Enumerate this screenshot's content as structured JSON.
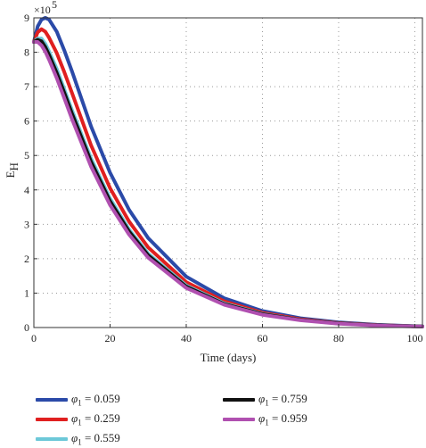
{
  "chart_data": {
    "type": "line",
    "xlabel": "Time (days)",
    "ylabel": "E",
    "ylabel_sub": "H",
    "y_multiplier": "×10",
    "y_multiplier_exp": "5",
    "xlim": [
      0,
      102
    ],
    "ylim": [
      0,
      9
    ],
    "xticks": [
      0,
      20,
      40,
      60,
      80,
      100
    ],
    "yticks": [
      0,
      1,
      2,
      3,
      4,
      5,
      6,
      7,
      8,
      9
    ],
    "grid": "dotted",
    "legend_position": "bottom",
    "series": [
      {
        "name": "= 0.059",
        "symbol": "φ",
        "sub": "1",
        "color": "#2b4aa8",
        "x": [
          0,
          1,
          2,
          3,
          4,
          6,
          8,
          10,
          15,
          20,
          25,
          30,
          40,
          50,
          60,
          70,
          80,
          90,
          100,
          102
        ],
        "y": [
          8.3,
          8.75,
          8.95,
          9.0,
          8.95,
          8.6,
          8.05,
          7.45,
          5.85,
          4.5,
          3.42,
          2.6,
          1.48,
          0.85,
          0.48,
          0.27,
          0.15,
          0.08,
          0.04,
          0.035
        ]
      },
      {
        "name": "= 0.259",
        "symbol": "φ",
        "sub": "1",
        "color": "#e02020",
        "x": [
          0,
          1,
          2,
          3,
          4,
          6,
          8,
          10,
          15,
          20,
          25,
          30,
          40,
          50,
          60,
          70,
          80,
          90,
          100,
          102
        ],
        "y": [
          8.3,
          8.58,
          8.67,
          8.6,
          8.42,
          7.98,
          7.42,
          6.82,
          5.3,
          4.05,
          3.08,
          2.33,
          1.32,
          0.76,
          0.43,
          0.24,
          0.13,
          0.07,
          0.035,
          0.03
        ]
      },
      {
        "name": "= 0.559",
        "symbol": "φ",
        "sub": "1",
        "color": "#6cc8d8",
        "x": [
          0,
          1,
          2,
          3,
          4,
          6,
          8,
          10,
          15,
          20,
          25,
          30,
          40,
          50,
          60,
          70,
          80,
          90,
          100,
          102
        ],
        "y": [
          8.3,
          8.4,
          8.4,
          8.25,
          8.02,
          7.52,
          6.92,
          6.32,
          4.92,
          3.75,
          2.85,
          2.15,
          1.22,
          0.7,
          0.4,
          0.22,
          0.12,
          0.065,
          0.035,
          0.03
        ]
      },
      {
        "name": "= 0.759",
        "symbol": "φ",
        "sub": "1",
        "color": "#111111",
        "x": [
          0,
          1,
          2,
          3,
          4,
          6,
          8,
          10,
          15,
          20,
          25,
          30,
          40,
          50,
          60,
          70,
          80,
          90,
          100,
          102
        ],
        "y": [
          8.3,
          8.36,
          8.32,
          8.15,
          7.92,
          7.4,
          6.82,
          6.22,
          4.82,
          3.67,
          2.79,
          2.1,
          1.19,
          0.68,
          0.39,
          0.22,
          0.12,
          0.065,
          0.035,
          0.03
        ]
      },
      {
        "name": "= 0.959",
        "symbol": "φ",
        "sub": "1",
        "color": "#b050b0",
        "x": [
          0,
          1,
          2,
          3,
          4,
          6,
          8,
          10,
          15,
          20,
          25,
          30,
          40,
          50,
          60,
          70,
          80,
          90,
          100,
          102
        ],
        "y": [
          8.3,
          8.3,
          8.2,
          8.02,
          7.78,
          7.25,
          6.66,
          6.06,
          4.68,
          3.56,
          2.7,
          2.03,
          1.15,
          0.66,
          0.37,
          0.21,
          0.11,
          0.06,
          0.03,
          0.028
        ]
      }
    ]
  }
}
